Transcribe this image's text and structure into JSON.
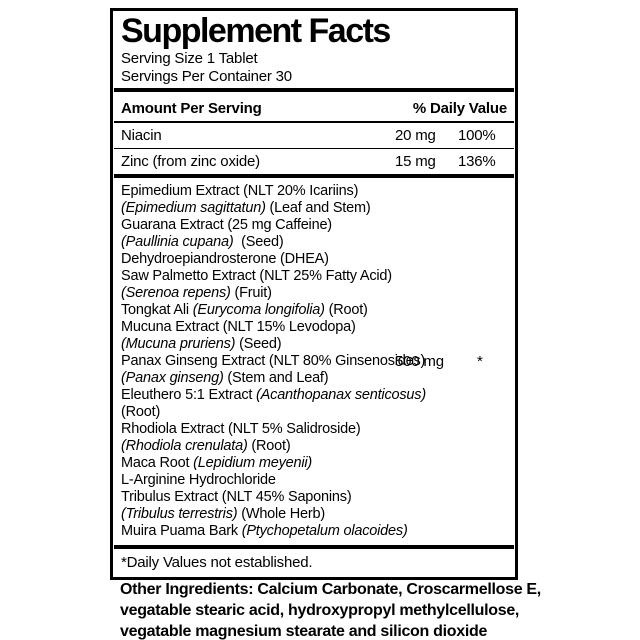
{
  "label": {
    "title": "Supplement Facts",
    "serving_size": "Serving Size 1 Tablet",
    "servings_per_container": "Servings Per Container 30",
    "columns": {
      "amount": "Amount Per Serving",
      "daily_value": "% Daily Value"
    },
    "nutrients": [
      {
        "name": "Niacin",
        "amount": "20 mg",
        "dv": "100%"
      },
      {
        "name": "Zinc (from zinc oxide)",
        "amount": "15 mg",
        "dv": "136%"
      }
    ],
    "blend": {
      "amount": "500 mg",
      "dv": "*",
      "amount_line_index": 10,
      "lines": [
        {
          "pre": "Epimedium Extract (NLT 20% Icariins)"
        },
        {
          "pre": "",
          "italic": "(Epimedium sagittatun)",
          "post": " (Leaf and Stem)"
        },
        {
          "pre": "Guarana Extract (25 mg Caffeine)"
        },
        {
          "pre": "",
          "italic": "(Paullinia cupana)",
          "post": "  (Seed)"
        },
        {
          "pre": "Dehydroepiandrosterone (DHEA)"
        },
        {
          "pre": "Saw Palmetto Extract (NLT 25% Fatty Acid)"
        },
        {
          "pre": "",
          "italic": "(Serenoa repens)",
          "post": " (Fruit)"
        },
        {
          "pre": "Tongkat Ali ",
          "italic": "(Eurycoma longifolia)",
          "post": " (Root)"
        },
        {
          "pre": "Mucuna Extract (NLT 15% Levodopa)"
        },
        {
          "pre": "",
          "italic": "(Mucuna pruriens)",
          "post": " (Seed)"
        },
        {
          "pre": "Panax Ginseng Extract (NLT 80% Ginsenosides)"
        },
        {
          "pre": "",
          "italic": "(Panax ginseng)",
          "post": " (Stem and Leaf)"
        },
        {
          "pre": "Eleuthero 5:1 Extract ",
          "italic": "(Acanthopanax senticosus)"
        },
        {
          "pre": "(Root)"
        },
        {
          "pre": "Rhodiola Extract (NLT 5% Salidroside)"
        },
        {
          "pre": "",
          "italic": "(Rhodiola crenulata)",
          "post": " (Root)"
        },
        {
          "pre": "Maca Root ",
          "italic": "(Lepidium meyenii)"
        },
        {
          "pre": "L-Arginine Hydrochloride"
        },
        {
          "pre": "Tribulus Extract (NLT 45% Saponins)"
        },
        {
          "pre": "",
          "italic": "(Tribulus terrestris)",
          "post": " (Whole Herb)"
        },
        {
          "pre": "Muira Puama Bark ",
          "italic": "(Ptychopetalum olacoides)"
        }
      ]
    },
    "footnote": "*Daily Values not established."
  },
  "other_ingredients": {
    "lines": [
      "Other Ingredients: Calcium Carbonate, Croscarmellose E,",
      "vegatable stearic acid, hydroxypropyl methylcellulose,",
      "vegatable magnesium stearate and silicon dioxide"
    ]
  }
}
